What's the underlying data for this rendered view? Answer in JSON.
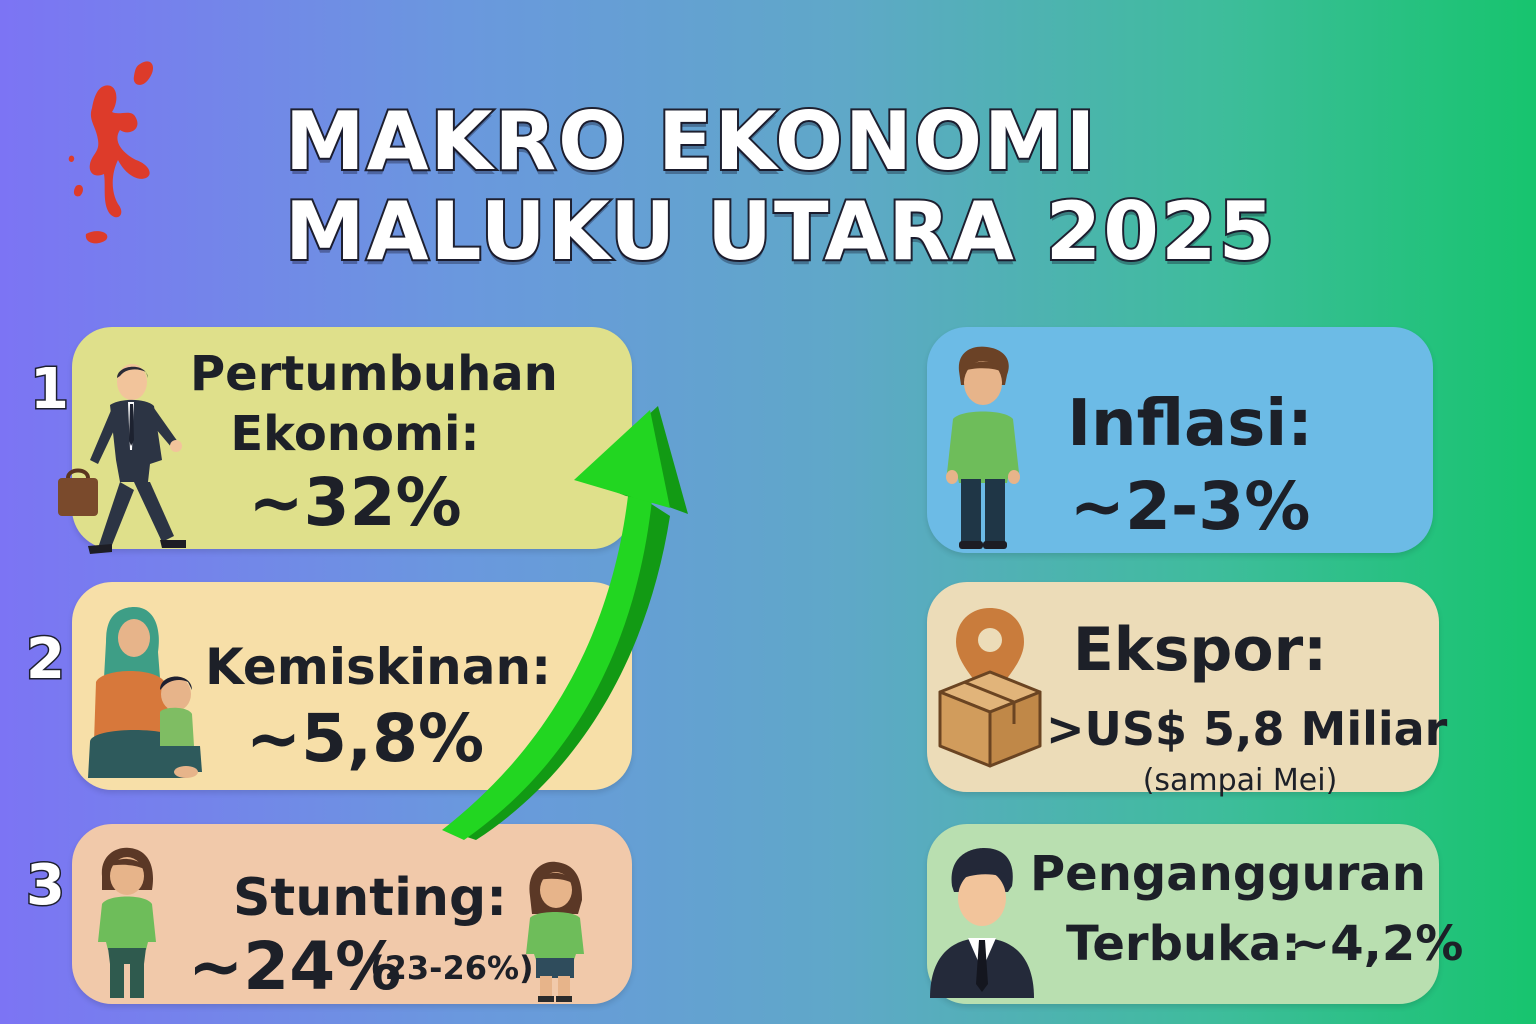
{
  "title": {
    "line1": "MAKRO EKONOMI",
    "line2": "MALUKU UTARA 2025"
  },
  "left_cards": [
    {
      "number": "1",
      "label_line1": "Pertumbuhan",
      "label_line2": "Ekonomi:",
      "value": "~32%",
      "color": "#dfe08b"
    },
    {
      "number": "2",
      "label": "Kemiskinan:",
      "value": "~5,8%",
      "color": "#f7dfa8"
    },
    {
      "number": "3",
      "label": "Stunting:",
      "value": "~24%",
      "note": "(23-26%)",
      "color": "#f1c9aa"
    }
  ],
  "right_cards": [
    {
      "label": "Inflasi:",
      "value": "~2-3%",
      "color": "#6cbbe6"
    },
    {
      "label": "Ekspor:",
      "value": ">US$ 5,8 Miliar",
      "note": "(sampai Mei)",
      "color": "#ecdcb8"
    },
    {
      "label_line1": "Pengangguran",
      "label_line2": "Terbuka:",
      "value": "~4,2%",
      "color": "#b9dfb0"
    }
  ],
  "icons": [
    "map-icon",
    "businessman-walking-icon",
    "mother-child-icon",
    "girl-icon",
    "growth-arrow-icon",
    "young-man-icon",
    "location-pin-icon",
    "box-icon",
    "man-suit-icon"
  ],
  "accent_colors": {
    "arrow": "#22d621",
    "map": "#dd3b2a",
    "title_stroke": "#1e2030"
  }
}
